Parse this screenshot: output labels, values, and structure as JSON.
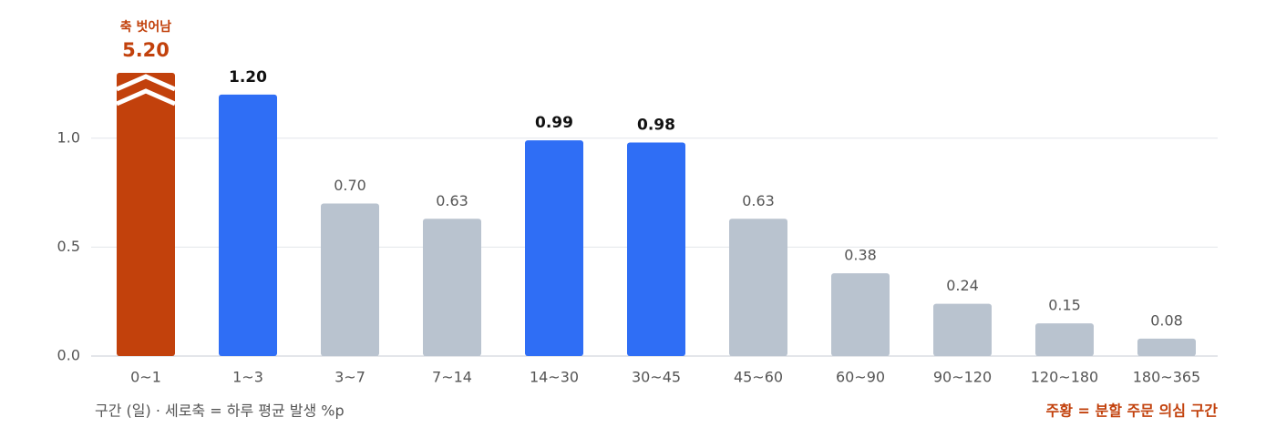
{
  "chart_data": {
    "type": "bar",
    "categories": [
      "0~1",
      "1~3",
      "3~7",
      "7~14",
      "14~30",
      "30~45",
      "45~60",
      "60~90",
      "90~120",
      "120~180",
      "180~365"
    ],
    "values": [
      5.2,
      1.2,
      0.7,
      0.63,
      0.99,
      0.98,
      0.63,
      0.38,
      0.24,
      0.15,
      0.08
    ],
    "value_labels": [
      "5.20",
      "1.20",
      "0.70",
      "0.63",
      "0.99",
      "0.98",
      "0.63",
      "0.38",
      "0.24",
      "0.15",
      "0.08"
    ],
    "colors": [
      "#c2410c",
      "#2f6ef5",
      "#b9c3cf",
      "#b9c3cf",
      "#2f6ef5",
      "#2f6ef5",
      "#b9c3cf",
      "#b9c3cf",
      "#b9c3cf",
      "#b9c3cf",
      "#b9c3cf"
    ],
    "ylim": [
      0,
      1.3
    ],
    "yticks": [
      {
        "value": 0,
        "label": "0.0"
      },
      0.5,
      {
        "value": 1,
        "label": "1.0"
      }
    ],
    "grid": true,
    "overflow_annotation": "축 벗어남",
    "x_note": "구간 (일) · 세로축 = 하루 평균 발생 %p",
    "legend_note": "주황 = 분할 주문 의심 구간"
  }
}
